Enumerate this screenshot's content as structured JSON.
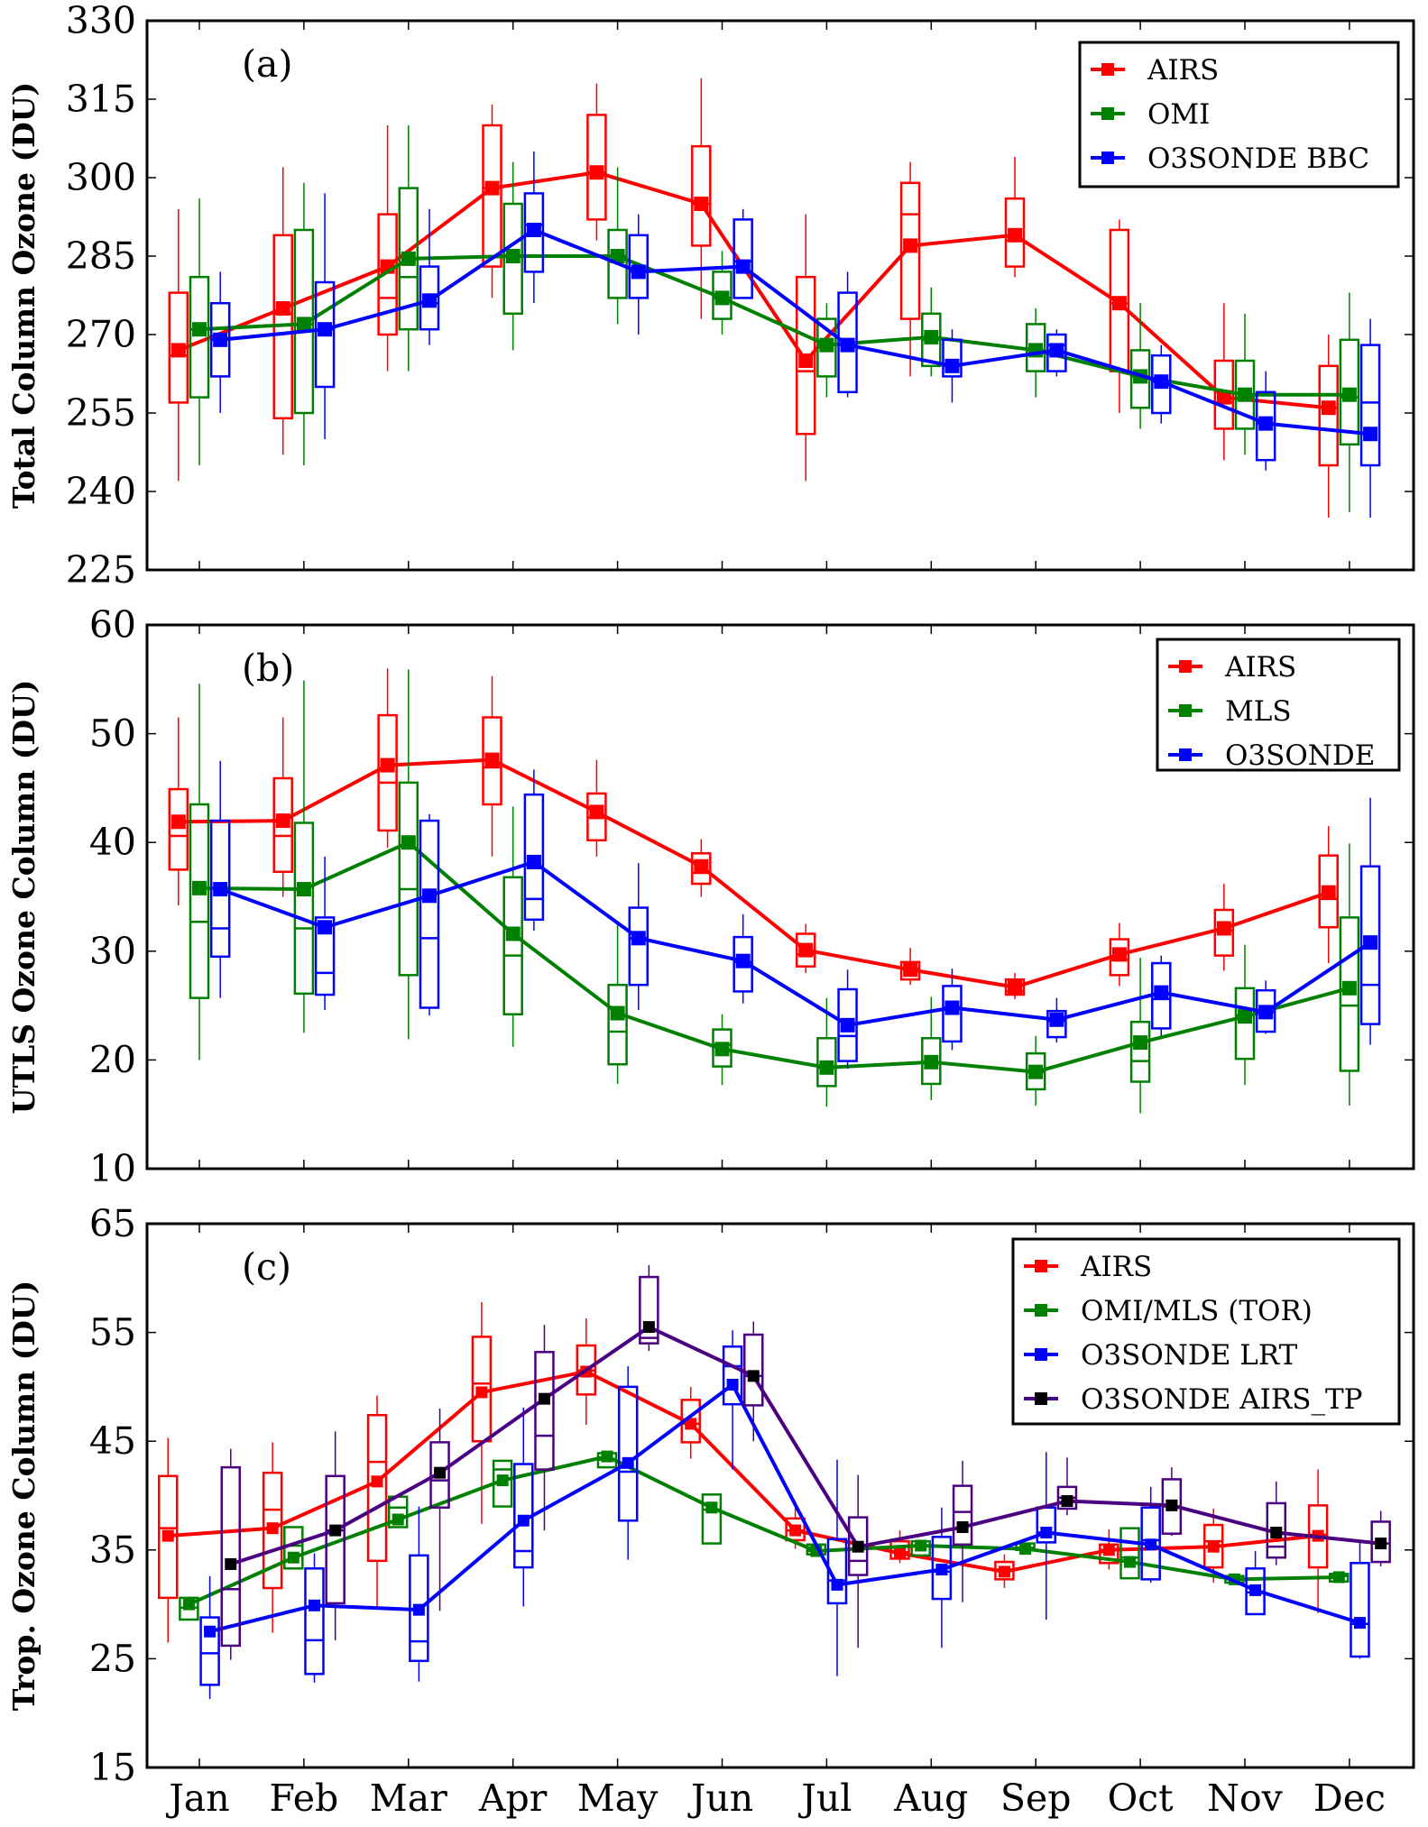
{
  "chart_data": [
    {
      "type": "box-line",
      "panel_label": "(a)",
      "ylabel": "Total Column Ozone  (DU)",
      "xlabel": "",
      "categories": [
        "Jan",
        "Feb",
        "Mar",
        "Apr",
        "May",
        "Jun",
        "Jul",
        "Aug",
        "Sep",
        "Oct",
        "Nov",
        "Dec"
      ],
      "ylim": [
        225,
        330
      ],
      "yticks": [
        225,
        240,
        255,
        270,
        285,
        300,
        315,
        330
      ],
      "legend_position": "top-right",
      "series": [
        {
          "name": "AIRS",
          "color": "#ff0000",
          "marker_color": "#ff0000",
          "values": [
            267,
            275,
            283,
            298,
            301,
            295,
            265,
            287,
            289,
            276,
            258,
            256
          ],
          "box_low": [
            257,
            254,
            270,
            283,
            292,
            287,
            251,
            273,
            283,
            263,
            252,
            245
          ],
          "box_high": [
            278,
            289,
            293,
            310,
            312,
            306,
            281,
            299,
            296,
            290,
            265,
            264
          ],
          "median": [
            266,
            274,
            277,
            298,
            301,
            295,
            263,
            293,
            288,
            276,
            257,
            256
          ],
          "whisk_low": [
            242,
            247,
            263,
            277,
            288,
            273,
            242,
            262,
            281,
            255,
            246,
            235
          ],
          "whisk_high": [
            294,
            302,
            310,
            314,
            318,
            319,
            293,
            303,
            304,
            292,
            276,
            270
          ]
        },
        {
          "name": "OMI",
          "color": "#008000",
          "marker_color": "#008000",
          "values": [
            271,
            272,
            284.5,
            285,
            285,
            277,
            268,
            269.5,
            267,
            262,
            258.5,
            258.5
          ],
          "box_low": [
            258,
            255,
            271,
            274,
            277,
            273,
            262,
            264,
            263,
            256,
            252,
            249
          ],
          "box_high": [
            281,
            290,
            298,
            295,
            290,
            282,
            273,
            274,
            272,
            267,
            265,
            269
          ],
          "median": [
            271,
            272,
            281,
            285,
            285,
            277,
            268,
            269,
            267,
            262,
            258,
            258
          ],
          "whisk_low": [
            245,
            245,
            263,
            267,
            272,
            270,
            258,
            262,
            258,
            252,
            247,
            236
          ],
          "whisk_high": [
            296,
            299,
            310,
            303,
            302,
            286,
            276,
            279,
            275,
            276,
            274,
            278
          ]
        },
        {
          "name": "O3SONDE BBC",
          "color": "#0000ff",
          "marker_color": "#0000ff",
          "values": [
            269,
            271,
            276.5,
            290,
            282,
            283,
            268,
            264,
            267,
            261,
            253,
            251
          ],
          "box_low": [
            262,
            260,
            271,
            282,
            277,
            277,
            259,
            262,
            263,
            255,
            246,
            245
          ],
          "box_high": [
            276,
            280,
            283,
            297,
            289,
            292,
            278,
            269,
            270,
            266,
            259,
            268
          ],
          "median": [
            269,
            271,
            276,
            291,
            282,
            284,
            268,
            264,
            268,
            261,
            253,
            257
          ],
          "whisk_low": [
            255,
            250,
            268,
            276,
            270,
            277,
            258,
            257,
            262,
            253,
            244,
            235
          ],
          "whisk_high": [
            282,
            297,
            294,
            305,
            293,
            294,
            282,
            271,
            271,
            268,
            263,
            273
          ]
        }
      ]
    },
    {
      "type": "box-line",
      "panel_label": "(b)",
      "ylabel": "UTLS Ozone Column  (DU)",
      "xlabel": "",
      "categories": [
        "Jan",
        "Feb",
        "Mar",
        "Apr",
        "May",
        "Jun",
        "Jul",
        "Aug",
        "Sep",
        "Oct",
        "Nov",
        "Dec"
      ],
      "ylim": [
        10,
        60
      ],
      "yticks": [
        10,
        20,
        30,
        40,
        50,
        60
      ],
      "legend_position": "top-right",
      "series": [
        {
          "name": "AIRS",
          "color": "#ff0000",
          "marker_color": "#ff0000",
          "values": [
            41.9,
            42.0,
            47.1,
            47.6,
            42.8,
            37.8,
            30.1,
            28.3,
            26.7,
            29.7,
            32.1,
            35.4
          ],
          "box_low": [
            37.5,
            37.3,
            41.1,
            43.5,
            40.2,
            36.2,
            28.6,
            27.4,
            26.0,
            27.8,
            29.6,
            32.2
          ],
          "box_high": [
            44.9,
            45.9,
            51.7,
            51.5,
            44.5,
            39.0,
            31.6,
            29.0,
            27.4,
            31.1,
            33.8,
            38.8
          ],
          "median": [
            40.6,
            40.6,
            45.5,
            46.9,
            42.3,
            37.2,
            29.7,
            28.4,
            26.3,
            29.2,
            31.9,
            34.8
          ],
          "whisk_low": [
            34.2,
            35.0,
            39.5,
            38.7,
            38.7,
            35.0,
            28.0,
            26.9,
            25.6,
            26.8,
            28.2,
            28.9
          ],
          "whisk_high": [
            51.5,
            51.5,
            56.0,
            55.3,
            47.6,
            40.3,
            32.5,
            30.3,
            28.0,
            32.6,
            36.2,
            41.5
          ]
        },
        {
          "name": "MLS",
          "color": "#008000",
          "marker_color": "#008000",
          "values": [
            35.8,
            35.7,
            40.0,
            31.6,
            24.3,
            21.0,
            19.3,
            19.8,
            18.9,
            21.6,
            24.0,
            26.6
          ],
          "box_low": [
            25.7,
            26.1,
            27.8,
            24.2,
            19.6,
            19.4,
            17.6,
            17.8,
            17.3,
            18.0,
            20.1,
            19.0
          ],
          "box_high": [
            43.5,
            41.8,
            45.5,
            36.8,
            26.9,
            22.8,
            22.0,
            22.0,
            20.6,
            23.5,
            26.6,
            33.1
          ],
          "median": [
            32.7,
            32.1,
            35.7,
            29.6,
            22.6,
            21.4,
            19.3,
            19.8,
            18.9,
            19.9,
            24.1,
            25.0
          ],
          "whisk_low": [
            20.0,
            22.5,
            21.9,
            21.2,
            17.8,
            17.7,
            15.7,
            16.3,
            15.8,
            15.1,
            17.7,
            15.8
          ],
          "whisk_high": [
            54.6,
            54.9,
            55.9,
            43.3,
            32.5,
            24.2,
            25.7,
            25.8,
            22.2,
            29.4,
            30.6,
            39.9
          ]
        },
        {
          "name": "O3SONDE",
          "color": "#0000ff",
          "marker_color": "#0000ff",
          "values": [
            35.7,
            32.2,
            35.1,
            38.2,
            31.2,
            29.1,
            23.2,
            24.8,
            23.7,
            26.2,
            24.4,
            30.8
          ],
          "box_low": [
            29.5,
            26.0,
            24.8,
            32.9,
            26.9,
            26.3,
            19.9,
            21.7,
            22.1,
            22.9,
            22.6,
            23.3
          ],
          "box_high": [
            42.0,
            33.1,
            42.0,
            44.4,
            34.0,
            31.3,
            26.5,
            26.8,
            24.5,
            28.9,
            26.4,
            37.8
          ],
          "median": [
            32.1,
            28.0,
            31.2,
            34.8,
            31.2,
            29.0,
            22.2,
            24.8,
            23.6,
            25.6,
            24.4,
            26.9
          ],
          "whisk_low": [
            25.7,
            24.6,
            24.1,
            31.9,
            24.6,
            25.2,
            19.2,
            20.9,
            21.6,
            22.2,
            22.4,
            21.4
          ],
          "whisk_high": [
            47.5,
            38.7,
            42.6,
            46.7,
            38.1,
            33.4,
            28.3,
            28.4,
            25.7,
            29.6,
            27.3,
            44.1
          ]
        }
      ]
    },
    {
      "type": "box-line",
      "panel_label": "(c)",
      "ylabel": "Trop. Ozone Column  (DU)",
      "xlabel": "",
      "categories": [
        "Jan",
        "Feb",
        "Mar",
        "Apr",
        "May",
        "Jun",
        "Jul",
        "Aug",
        "Sep",
        "Oct",
        "Nov",
        "Dec"
      ],
      "ylim": [
        15,
        65
      ],
      "yticks": [
        15,
        25,
        35,
        45,
        55,
        65
      ],
      "legend_position": "top-right",
      "series": [
        {
          "name": "AIRS",
          "color": "#ff0000",
          "marker_color": "#ff0000",
          "values": [
            36.3,
            37.0,
            41.3,
            49.5,
            51.4,
            46.6,
            36.8,
            34.7,
            33.0,
            35.0,
            35.3,
            36.3
          ],
          "box_low": [
            30.6,
            31.5,
            34.0,
            45.0,
            49.3,
            44.9,
            35.9,
            34.2,
            32.3,
            33.8,
            33.4,
            33.4
          ],
          "box_high": [
            41.8,
            42.1,
            47.4,
            54.6,
            53.8,
            48.8,
            37.9,
            35.8,
            33.9,
            35.5,
            37.3,
            39.1
          ],
          "median": [
            37.0,
            38.7,
            43.1,
            50.3,
            51.5,
            46.6,
            36.8,
            34.8,
            33.2,
            35.0,
            35.8,
            36.4
          ],
          "whisk_low": [
            26.5,
            27.4,
            29.8,
            37.4,
            46.5,
            43.4,
            35.1,
            33.8,
            31.5,
            33.2,
            32.0,
            29.2
          ],
          "whisk_high": [
            45.3,
            44.9,
            49.2,
            57.8,
            56.3,
            50.0,
            39.5,
            36.8,
            34.6,
            36.9,
            38.8,
            42.4
          ]
        },
        {
          "name": "OMI/MLS (TOR)",
          "color": "#008000",
          "marker_color": "#008000",
          "values": [
            30.0,
            34.3,
            37.8,
            41.4,
            43.6,
            38.9,
            34.9,
            35.4,
            35.1,
            33.9,
            32.3,
            32.5
          ],
          "box_low": [
            28.6,
            33.3,
            37.1,
            39.0,
            42.6,
            35.6,
            34.6,
            34.5,
            35.0,
            32.4,
            32.0,
            32.1
          ],
          "box_high": [
            30.6,
            37.1,
            39.9,
            43.2,
            43.9,
            40.1,
            35.5,
            35.8,
            35.6,
            37.0,
            32.6,
            32.8
          ],
          "median": [
            29.7,
            35.4,
            38.9,
            42.4,
            43.3,
            38.7,
            34.9,
            35.4,
            35.2,
            34.3,
            32.3,
            32.6
          ],
          "whisk_low": [
            28.6,
            33.3,
            37.1,
            39.0,
            42.6,
            35.6,
            34.6,
            34.5,
            35.0,
            32.4,
            32.0,
            32.1
          ],
          "whisk_high": [
            30.6,
            37.1,
            39.9,
            43.2,
            43.9,
            40.1,
            35.5,
            35.8,
            35.6,
            37.0,
            32.6,
            32.8
          ]
        },
        {
          "name": "O3SONDE LRT",
          "color": "#0000ff",
          "marker_color": "#0000ff",
          "values": [
            27.5,
            29.9,
            29.5,
            37.7,
            43.0,
            50.2,
            31.8,
            33.2,
            36.6,
            35.5,
            31.3,
            28.3
          ],
          "box_low": [
            22.6,
            23.6,
            24.8,
            33.4,
            37.7,
            48.4,
            30.1,
            30.5,
            35.7,
            32.3,
            29.1,
            25.2
          ],
          "box_high": [
            28.8,
            33.3,
            34.5,
            42.9,
            50.0,
            53.7,
            36.0,
            36.2,
            38.9,
            38.9,
            33.3,
            33.8
          ],
          "median": [
            25.5,
            26.7,
            26.6,
            34.9,
            42.2,
            51.9,
            32.2,
            33.0,
            36.6,
            35.9,
            31.1,
            28.2
          ],
          "whisk_low": [
            21.3,
            22.8,
            22.9,
            29.8,
            34.1,
            42.4,
            23.4,
            26.0,
            28.6,
            32.0,
            29.0,
            25.0
          ],
          "whisk_high": [
            32.6,
            34.7,
            39.0,
            48.1,
            51.9,
            55.2,
            43.3,
            38.9,
            44.0,
            40.8,
            34.9,
            35.9
          ]
        },
        {
          "name": "O3SONDE AIRS_TP",
          "color": "#4b0082",
          "marker_color": "#000000",
          "values": [
            33.7,
            36.8,
            42.1,
            48.9,
            55.5,
            51.0,
            35.3,
            37.1,
            39.5,
            39.1,
            36.6,
            35.6
          ],
          "box_low": [
            26.2,
            30.1,
            38.9,
            42.4,
            54.0,
            48.3,
            32.7,
            35.5,
            38.8,
            36.5,
            34.3,
            33.9
          ],
          "box_high": [
            42.6,
            41.8,
            44.9,
            53.2,
            60.1,
            54.8,
            38.0,
            40.9,
            40.8,
            41.5,
            39.3,
            37.6
          ],
          "median": [
            31.4,
            36.8,
            41.4,
            45.5,
            54.5,
            51.0,
            34.0,
            38.5,
            39.8,
            39.0,
            35.3,
            35.6
          ],
          "whisk_low": [
            24.9,
            26.7,
            29.4,
            36.8,
            53.3,
            45.0,
            26.0,
            30.2,
            38.2,
            36.3,
            33.6,
            33.5
          ],
          "whisk_high": [
            44.3,
            45.9,
            48.0,
            55.7,
            61.2,
            56.0,
            41.9,
            43.2,
            43.5,
            42.6,
            41.3,
            38.6
          ]
        }
      ]
    }
  ]
}
